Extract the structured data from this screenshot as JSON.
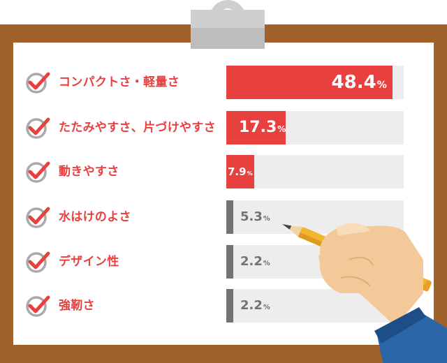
{
  "colors": {
    "highlight": "#e8403f",
    "muted": "#737373",
    "track": "#ededed",
    "board": "#a0612a"
  },
  "chart_data": {
    "type": "bar",
    "orientation": "horizontal",
    "categories": [
      "コンパクトさ・軽量さ",
      "たたみやすさ、片づけやすさ",
      "動きやすさ",
      "水はけのよさ",
      "デザイン性",
      "強靭さ"
    ],
    "values": [
      48.4,
      17.3,
      7.9,
      5.3,
      2.2,
      2.2
    ],
    "value_labels": [
      "48.4",
      "17.3",
      "7.9",
      "5.3",
      "2.2",
      "2.2"
    ],
    "unit": "%",
    "title": "",
    "xlabel": "",
    "ylabel": "",
    "xlim": [
      0,
      50
    ],
    "grid": false,
    "legend": "none"
  }
}
